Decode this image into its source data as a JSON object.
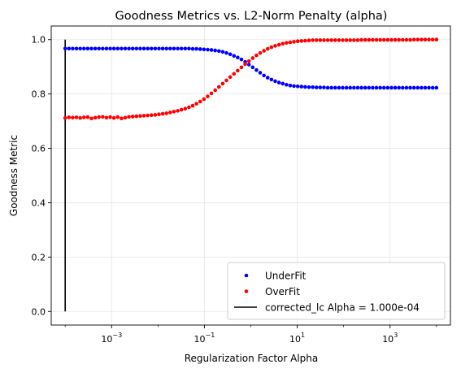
{
  "chart_data": {
    "type": "scatter",
    "title": "Goodness Metrics vs. L2-Norm Penalty (alpha)",
    "xlabel": "Regularization Factor Alpha",
    "ylabel": "Goodness Metric",
    "xscale": "log",
    "xlim": [
      5e-05,
      20000.0
    ],
    "ylim": [
      -0.05,
      1.05
    ],
    "xtick_labels": [
      "10^-3",
      "10^-1",
      "10^1",
      "10^3"
    ],
    "ytick_labels": [
      "0.0",
      "0.2",
      "0.4",
      "0.6",
      "0.8",
      "1.0"
    ],
    "grid": true,
    "legend_position": "bottom-right",
    "alpha_range": [
      0.0001,
      10000.0
    ],
    "series": [
      {
        "name": "UnderFit",
        "color": "#0000ff",
        "marker": "dot",
        "y": [
          0.967,
          0.967,
          0.967,
          0.967,
          0.967,
          0.967,
          0.967,
          0.967,
          0.967,
          0.967,
          0.967,
          0.967,
          0.967,
          0.967,
          0.967,
          0.967,
          0.967,
          0.967,
          0.967,
          0.967,
          0.967,
          0.967,
          0.967,
          0.967,
          0.967,
          0.967,
          0.967,
          0.967,
          0.967,
          0.967,
          0.967,
          0.967,
          0.967,
          0.967,
          0.966,
          0.966,
          0.965,
          0.964,
          0.963,
          0.962,
          0.96,
          0.958,
          0.955,
          0.951,
          0.946,
          0.94,
          0.934,
          0.927,
          0.918,
          0.908,
          0.898,
          0.888,
          0.878,
          0.868,
          0.86,
          0.853,
          0.847,
          0.842,
          0.838,
          0.834,
          0.831,
          0.829,
          0.828,
          0.827,
          0.826,
          0.825,
          0.825,
          0.824,
          0.824,
          0.824,
          0.823,
          0.823,
          0.823,
          0.823,
          0.823,
          0.823,
          0.823,
          0.823,
          0.823,
          0.823,
          0.823,
          0.823,
          0.823,
          0.823,
          0.823,
          0.823,
          0.823,
          0.823,
          0.823,
          0.823,
          0.823,
          0.823,
          0.823,
          0.823,
          0.823,
          0.823,
          0.823,
          0.823,
          0.823,
          0.823
        ]
      },
      {
        "name": "OverFit",
        "color": "#ff0000",
        "marker": "dot",
        "y": [
          0.712,
          0.714,
          0.713,
          0.714,
          0.712,
          0.714,
          0.715,
          0.71,
          0.713,
          0.715,
          0.716,
          0.713,
          0.715,
          0.712,
          0.715,
          0.71,
          0.713,
          0.716,
          0.717,
          0.718,
          0.719,
          0.72,
          0.721,
          0.722,
          0.723,
          0.725,
          0.727,
          0.729,
          0.732,
          0.735,
          0.738,
          0.742,
          0.746,
          0.751,
          0.757,
          0.764,
          0.772,
          0.781,
          0.791,
          0.802,
          0.814,
          0.826,
          0.838,
          0.85,
          0.862,
          0.874,
          0.886,
          0.898,
          0.91,
          0.921,
          0.932,
          0.942,
          0.951,
          0.959,
          0.966,
          0.972,
          0.977,
          0.981,
          0.985,
          0.988,
          0.99,
          0.992,
          0.994,
          0.995,
          0.996,
          0.997,
          0.998,
          0.998,
          0.998,
          0.998,
          0.998,
          0.998,
          0.998,
          0.998,
          0.998,
          0.998,
          0.998,
          0.998,
          0.998,
          0.999,
          0.999,
          0.999,
          0.999,
          0.999,
          0.999,
          0.999,
          0.999,
          0.999,
          0.999,
          0.999,
          0.999,
          0.999,
          0.999,
          1.0,
          1.0,
          1.0,
          1.0,
          1.0,
          1.0,
          1.0
        ]
      }
    ],
    "vline": {
      "name": "corrected_lc Alpha = 1.000e-04",
      "x": 0.0001,
      "y_range": [
        0.0,
        1.0
      ],
      "color": "#000000"
    }
  }
}
